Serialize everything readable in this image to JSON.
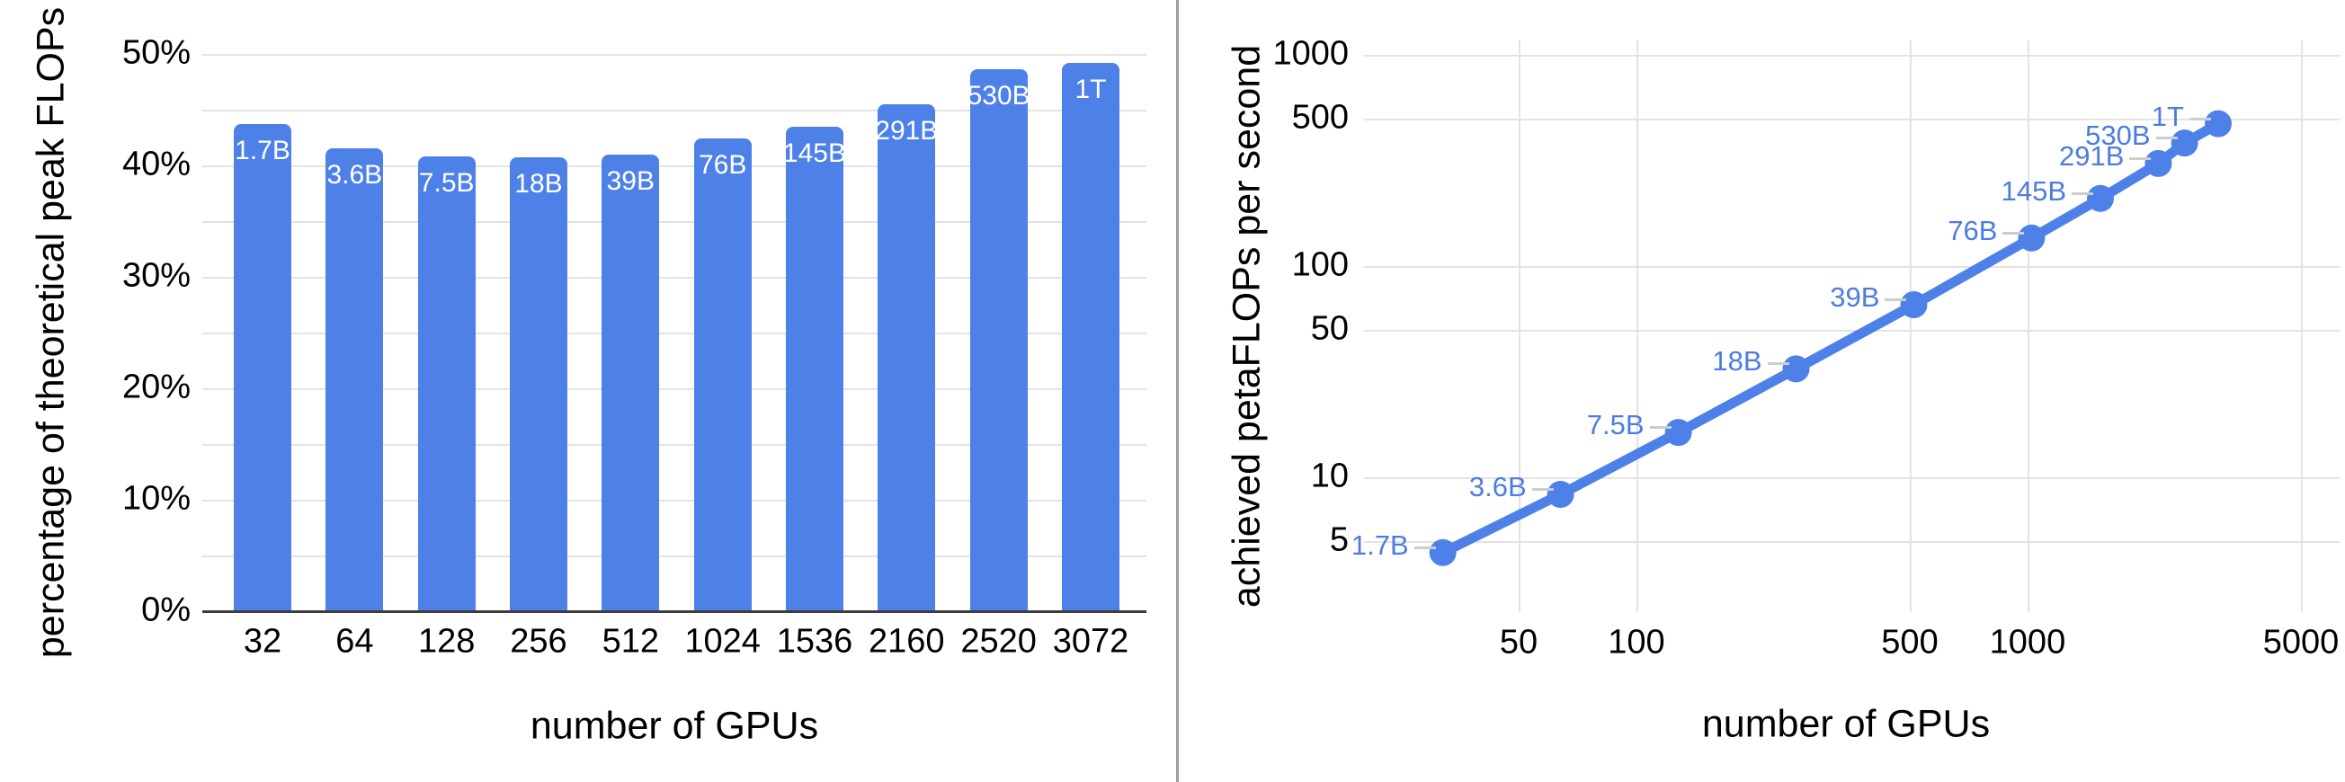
{
  "colors": {
    "series_blue": "#4e81e8",
    "point_label_blue": "#4d7ce0",
    "bar_label_white": "#ffffff",
    "grid": "#e3e3e3",
    "axis_line": "#3d3d3d",
    "tick_text": "#000000",
    "leader_dash": "#cccccc",
    "divider": "#9e9e9e",
    "background": "#ffffff"
  },
  "chart_data": [
    {
      "type": "bar",
      "title": "",
      "xlabel": "number of GPUs",
      "ylabel": "percentage of theoretical peak FLOPs",
      "categories": [
        "32",
        "64",
        "128",
        "256",
        "512",
        "1024",
        "1536",
        "2160",
        "2520",
        "3072"
      ],
      "bar_labels": [
        "1.7B",
        "3.6B",
        "7.5B",
        "18B",
        "39B",
        "76B",
        "145B",
        "291B",
        "530B",
        "1T"
      ],
      "values": [
        43.7,
        41.5,
        40.8,
        40.7,
        41.0,
        42.4,
        43.5,
        45.5,
        48.6,
        49.2
      ],
      "ylim": [
        0,
        50
      ],
      "ytick_labels": [
        "0%",
        "10%",
        "20%",
        "30%",
        "40%",
        "50%"
      ],
      "ytick_values": [
        0,
        10,
        20,
        30,
        40,
        50
      ],
      "grid_values": [
        5,
        10,
        15,
        20,
        25,
        30,
        35,
        40,
        45,
        50
      ],
      "grid": "on",
      "legend": "none"
    },
    {
      "type": "line",
      "title": "",
      "xlabel": "number of GPUs",
      "ylabel": "achieved petaFLOPs per second",
      "xscale": "log",
      "yscale": "log",
      "x": [
        32,
        64,
        128,
        256,
        512,
        1024,
        1536,
        2160,
        2520,
        3072
      ],
      "y": [
        4.4,
        8.3,
        16.3,
        32.6,
        65.6,
        135.8,
        208.9,
        306,
        382.6,
        472.2
      ],
      "point_labels": [
        "1.7B",
        "3.6B",
        "7.5B",
        "18B",
        "39B",
        "76B",
        "145B",
        "291B",
        "530B",
        "1T"
      ],
      "xtick_labels": [
        "50",
        "100",
        "500",
        "1000",
        "5000"
      ],
      "xtick_values": [
        50,
        100,
        500,
        1000,
        5000
      ],
      "ytick_labels": [
        "5",
        "10",
        "50",
        "100",
        "500",
        "1000"
      ],
      "ytick_values": [
        5,
        10,
        50,
        100,
        500,
        1000
      ],
      "xlim": [
        28,
        5500
      ],
      "ylim": [
        2.3,
        1400
      ],
      "grid": "on",
      "legend": "none"
    }
  ]
}
